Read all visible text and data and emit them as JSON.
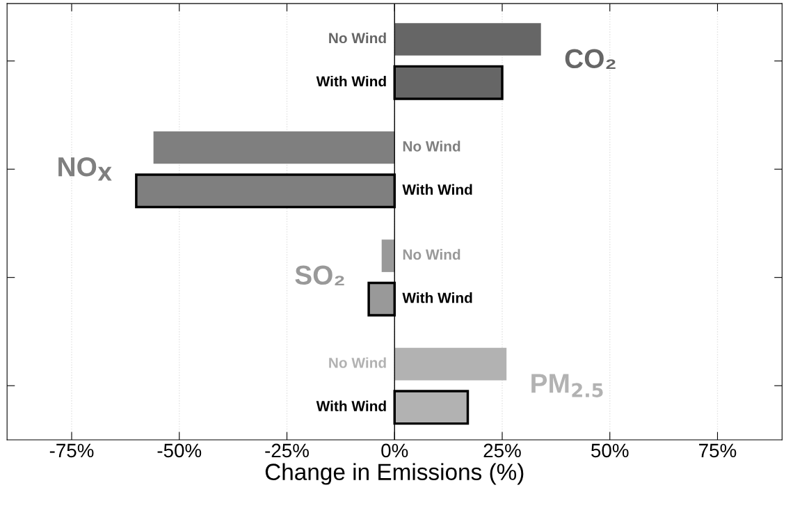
{
  "chart_data": {
    "type": "bar",
    "orientation": "horizontal",
    "xlabel": "Change in Emissions (%)",
    "categories": [
      "CO₂",
      "NO$_{X}$",
      "SO₂",
      "PM$_{2.5}$"
    ],
    "series": [
      {
        "name": "No Wind",
        "colors": [
          "#666666",
          "#7f7f7f",
          "#999999",
          "#b2b2b2"
        ],
        "values": [
          34,
          -56,
          -3,
          26
        ]
      },
      {
        "name": "With Wind",
        "colors": [
          "#666666",
          "#7f7f7f",
          "#999999",
          "#b2b2b2"
        ],
        "values": [
          25,
          -60,
          -6,
          17
        ]
      }
    ],
    "xlim": [
      -90,
      90
    ],
    "xticks": [
      {
        "value": -75,
        "label": "-75%"
      },
      {
        "value": -50,
        "label": "-50%"
      },
      {
        "value": -25,
        "label": "-25%"
      },
      {
        "value": 0,
        "label": "0%"
      },
      {
        "value": 25,
        "label": "25%"
      },
      {
        "value": 50,
        "label": "50%"
      },
      {
        "value": 75,
        "label": "75%"
      }
    ],
    "tick_labels": "x",
    "grid": "x",
    "legend": false,
    "ref_lines": [
      {
        "axis": "x",
        "value": 0,
        "color": "#000000"
      }
    ]
  }
}
